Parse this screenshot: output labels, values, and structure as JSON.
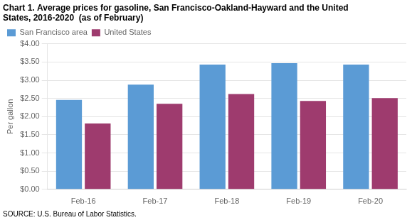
{
  "chart_data": {
    "type": "bar",
    "title": [
      "Chart 1. Average prices for gasoline, San Francisco-Oakland-Hayward and the United",
      "States, 2016-2020  (as of February)"
    ],
    "ylabel": "Per gallon",
    "source": "SOURCE: U.S. Bureau of Labor Statistics.",
    "categories": [
      "Feb-16",
      "Feb-17",
      "Feb-18",
      "Feb-19",
      "Feb-20"
    ],
    "series": [
      {
        "name": "San Francisco area",
        "color": "#5B9BD5",
        "values": [
          2.46,
          2.88,
          3.43,
          3.47,
          3.43
        ]
      },
      {
        "name": "United States",
        "color": "#9E3B6E",
        "values": [
          1.81,
          2.35,
          2.62,
          2.43,
          2.51
        ]
      }
    ],
    "ylim": [
      0.0,
      4.0
    ],
    "yticks": [
      {
        "value": 0.0,
        "label": "$0.00"
      },
      {
        "value": 0.5,
        "label": "$0.50"
      },
      {
        "value": 1.0,
        "label": "$1.00"
      },
      {
        "value": 1.5,
        "label": "$1.50"
      },
      {
        "value": 2.0,
        "label": "$2.00"
      },
      {
        "value": 2.5,
        "label": "$2.50"
      },
      {
        "value": 3.0,
        "label": "$3.00"
      },
      {
        "value": 3.5,
        "label": "$3.50"
      },
      {
        "value": 4.0,
        "label": "$4.00"
      }
    ],
    "grid": true,
    "legend": "upper left"
  }
}
